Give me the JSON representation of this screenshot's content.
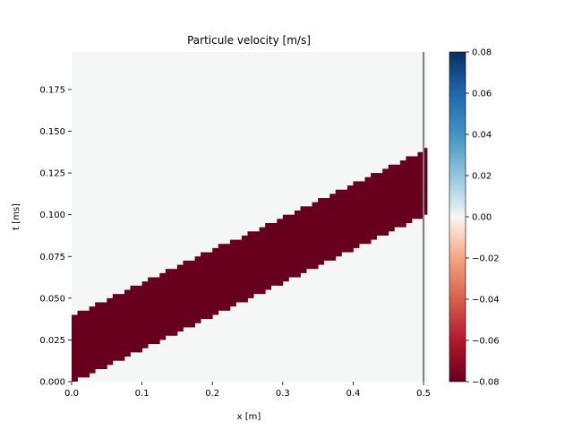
{
  "chart_data": {
    "type": "heatmap",
    "title": "Particule velocity [m/s]",
    "xlabel": "x [m]",
    "ylabel": "t [ms]",
    "xlim": [
      0.0,
      0.5
    ],
    "ylim": [
      0.0,
      0.1975
    ],
    "x_ticks": [
      "0.0",
      "0.1",
      "0.2",
      "0.3",
      "0.4",
      "0.5"
    ],
    "y_ticks": [
      "0.000",
      "0.025",
      "0.050",
      "0.075",
      "0.100",
      "0.125",
      "0.150",
      "0.175"
    ],
    "colormap": "RdBu",
    "colorbar": {
      "min": -0.08,
      "max": 0.08,
      "ticks": [
        "0.08",
        "0.06",
        "0.04",
        "0.02",
        "0.00",
        "−0.02",
        "−0.04",
        "−0.06",
        "−0.08"
      ]
    },
    "background_value": 0.0,
    "pulse": {
      "value": -0.08,
      "x_start": 0.0,
      "x_end": 0.5,
      "lower_t_start": 0.0,
      "lower_t_end": 0.1,
      "upper_t_start": 0.04,
      "upper_t_end": 0.139,
      "x_cells": 60,
      "t_step": 0.0025
    },
    "boundary_line": {
      "x": 0.5,
      "color": "#808080"
    },
    "colors": {
      "background": "#f5f6f6",
      "min_color": "#67001f",
      "max_color": "#053061"
    }
  }
}
